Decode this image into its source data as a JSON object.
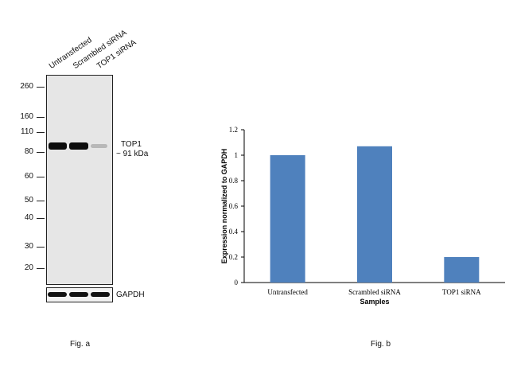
{
  "fig_a": {
    "lane_labels": [
      "Untransfected",
      "Scrambled siRNA",
      "TOP1 siRNA"
    ],
    "mw_markers": [
      "260",
      "160",
      "110",
      "80",
      "60",
      "50",
      "40",
      "30",
      "20"
    ],
    "target_label": "TOP1",
    "target_size": "~ 91 kDa",
    "loading_control": "GAPDH",
    "caption": "Fig. a"
  },
  "fig_b": {
    "caption": "Fig. b"
  },
  "colors": {
    "bar": "#4f81bd",
    "band": "#111111"
  },
  "chart_data": {
    "type": "bar",
    "categories": [
      "Untransfected",
      "Scrambled siRNA",
      "TOP1 siRNA"
    ],
    "values": [
      1.0,
      1.07,
      0.2
    ],
    "xlabel": "Samples",
    "ylabel": "Expression normalized to GAPDH",
    "ylim": [
      0,
      1.2
    ],
    "yticks": [
      "0",
      "0.2",
      "0.4",
      "0.6",
      "0.8",
      "1",
      "1.2"
    ],
    "grid": false,
    "legend": "none"
  }
}
